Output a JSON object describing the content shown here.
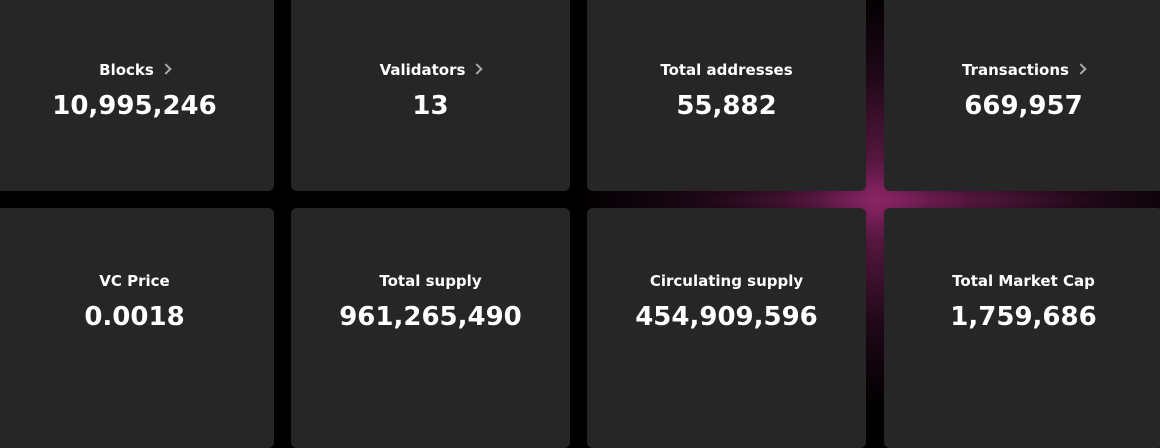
{
  "stats": [
    {
      "label": "Blocks",
      "value": "10,995,246"
    },
    {
      "label": "Validators",
      "value": "13"
    },
    {
      "label": "Total addresses",
      "value": "55,882"
    },
    {
      "label": "Transactions",
      "value": "669,957"
    },
    {
      "label": "VC Price",
      "value": "0.0018"
    },
    {
      "label": "Total supply",
      "value": "961,265,490"
    },
    {
      "label": "Circulating supply",
      "value": "454,909,596"
    },
    {
      "label": "Total Market Cap",
      "value": "1,759,686"
    }
  ]
}
